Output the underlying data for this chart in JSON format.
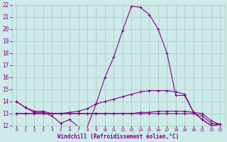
{
  "xlabel": "Windchill (Refroidissement éolien,°C)",
  "background_color": "#cceae7",
  "grid_color": "#aaccca",
  "line_color": "#880088",
  "x": [
    0,
    1,
    2,
    3,
    4,
    5,
    6,
    7,
    8,
    9,
    10,
    11,
    12,
    13,
    14,
    15,
    16,
    17,
    18,
    19,
    20,
    21,
    22,
    23
  ],
  "series1": [
    14.0,
    13.5,
    13.1,
    13.1,
    12.8,
    12.2,
    12.5,
    11.9,
    11.9,
    13.8,
    16.0,
    17.7,
    19.9,
    21.9,
    21.8,
    21.2,
    20.0,
    18.0,
    14.5,
    14.5,
    13.1,
    12.5,
    12.0,
    12.1
  ],
  "series2": [
    14.0,
    13.5,
    13.2,
    13.2,
    13.0,
    13.0,
    13.1,
    13.2,
    13.4,
    13.8,
    14.0,
    14.2,
    14.4,
    14.6,
    14.8,
    14.9,
    14.9,
    14.9,
    14.8,
    14.6,
    13.1,
    12.5,
    12.0,
    12.1
  ],
  "series3": [
    13.0,
    13.0,
    13.0,
    13.0,
    13.0,
    13.0,
    13.0,
    13.0,
    13.0,
    13.0,
    13.0,
    13.0,
    13.0,
    13.0,
    13.1,
    13.1,
    13.2,
    13.2,
    13.2,
    13.2,
    13.1,
    13.0,
    12.4,
    12.1
  ],
  "series4": [
    13.0,
    13.0,
    13.0,
    13.0,
    13.0,
    13.0,
    13.0,
    13.0,
    13.0,
    13.0,
    13.0,
    13.0,
    13.0,
    13.0,
    13.0,
    13.0,
    13.0,
    13.0,
    13.0,
    13.0,
    13.0,
    12.8,
    12.2,
    12.1
  ],
  "ylim": [
    12,
    22
  ],
  "yticks": [
    12,
    13,
    14,
    15,
    16,
    17,
    18,
    19,
    20,
    21,
    22
  ],
  "xticks": [
    0,
    1,
    2,
    3,
    4,
    5,
    6,
    7,
    8,
    9,
    10,
    11,
    12,
    13,
    14,
    15,
    16,
    17,
    18,
    19,
    20,
    21,
    22,
    23
  ]
}
